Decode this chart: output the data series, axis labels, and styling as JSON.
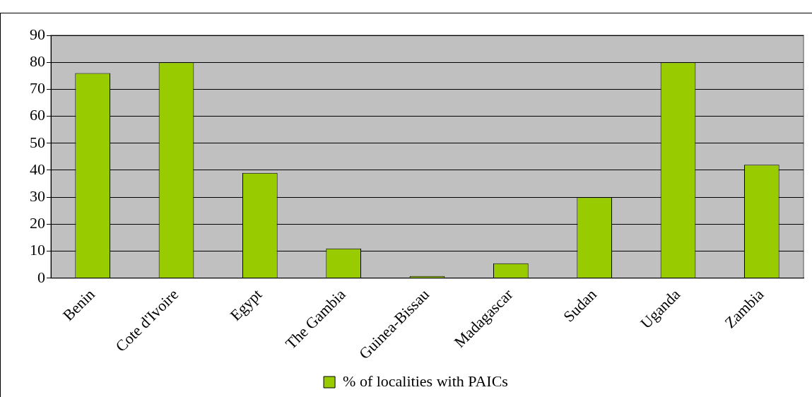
{
  "chart_data": {
    "type": "bar",
    "categories": [
      "Benin",
      "Cote d'Ivoire",
      "Egypt",
      "The Gambia",
      "Guinea-Bissau",
      "Madagascar",
      "Sudan",
      "Uganda",
      "Zambia"
    ],
    "series": [
      {
        "name": "% of localities with PAICs",
        "color": "#99cc00",
        "values": [
          76,
          80,
          39,
          11,
          0.8,
          5.5,
          30,
          80,
          42
        ]
      }
    ],
    "ylim": [
      0,
      90
    ],
    "yticks": [
      0,
      10,
      20,
      30,
      40,
      50,
      60,
      70,
      80,
      90
    ],
    "grid": "y",
    "legend": "bottom"
  }
}
